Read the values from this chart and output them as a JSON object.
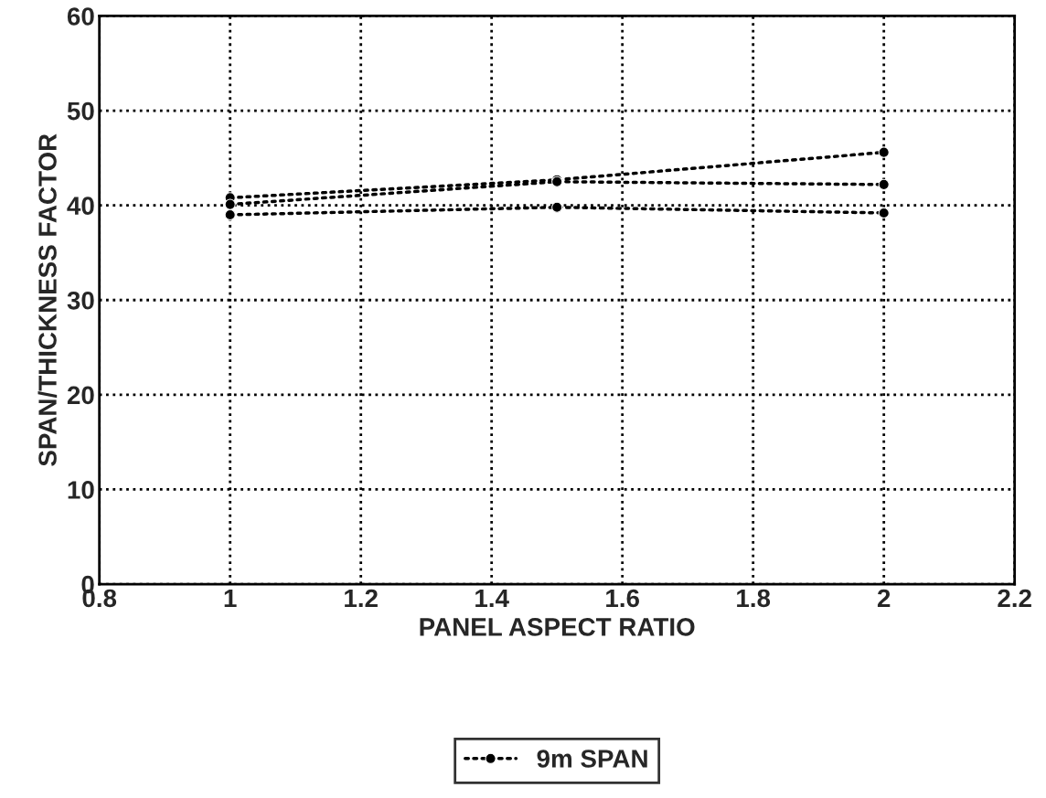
{
  "chart_data": {
    "type": "line",
    "xlabel": "PANEL ASPECT RATIO",
    "ylabel": "SPAN/THICKNESS FACTOR",
    "x": [
      1,
      1.5,
      2
    ],
    "series": [
      {
        "name": "9m SPAN",
        "color": "#000000",
        "values": [
          40.8,
          42.7,
          45.6
        ]
      },
      {
        "color": "#000000",
        "values": [
          40.1,
          42.5,
          42.2
        ]
      },
      {
        "color": "#000000",
        "values": [
          39.0,
          39.8,
          39.2
        ]
      }
    ],
    "xlim": [
      0.8,
      2.2
    ],
    "xticks": [
      0.8,
      1,
      1.2,
      1.4,
      1.6,
      1.8,
      2,
      2.2
    ],
    "ylim": [
      0,
      60
    ],
    "yticks": [
      0,
      10,
      20,
      30,
      40,
      50,
      60
    ],
    "grid": true,
    "legend": "bottom",
    "marker": "circle",
    "line_style": "dotted"
  }
}
